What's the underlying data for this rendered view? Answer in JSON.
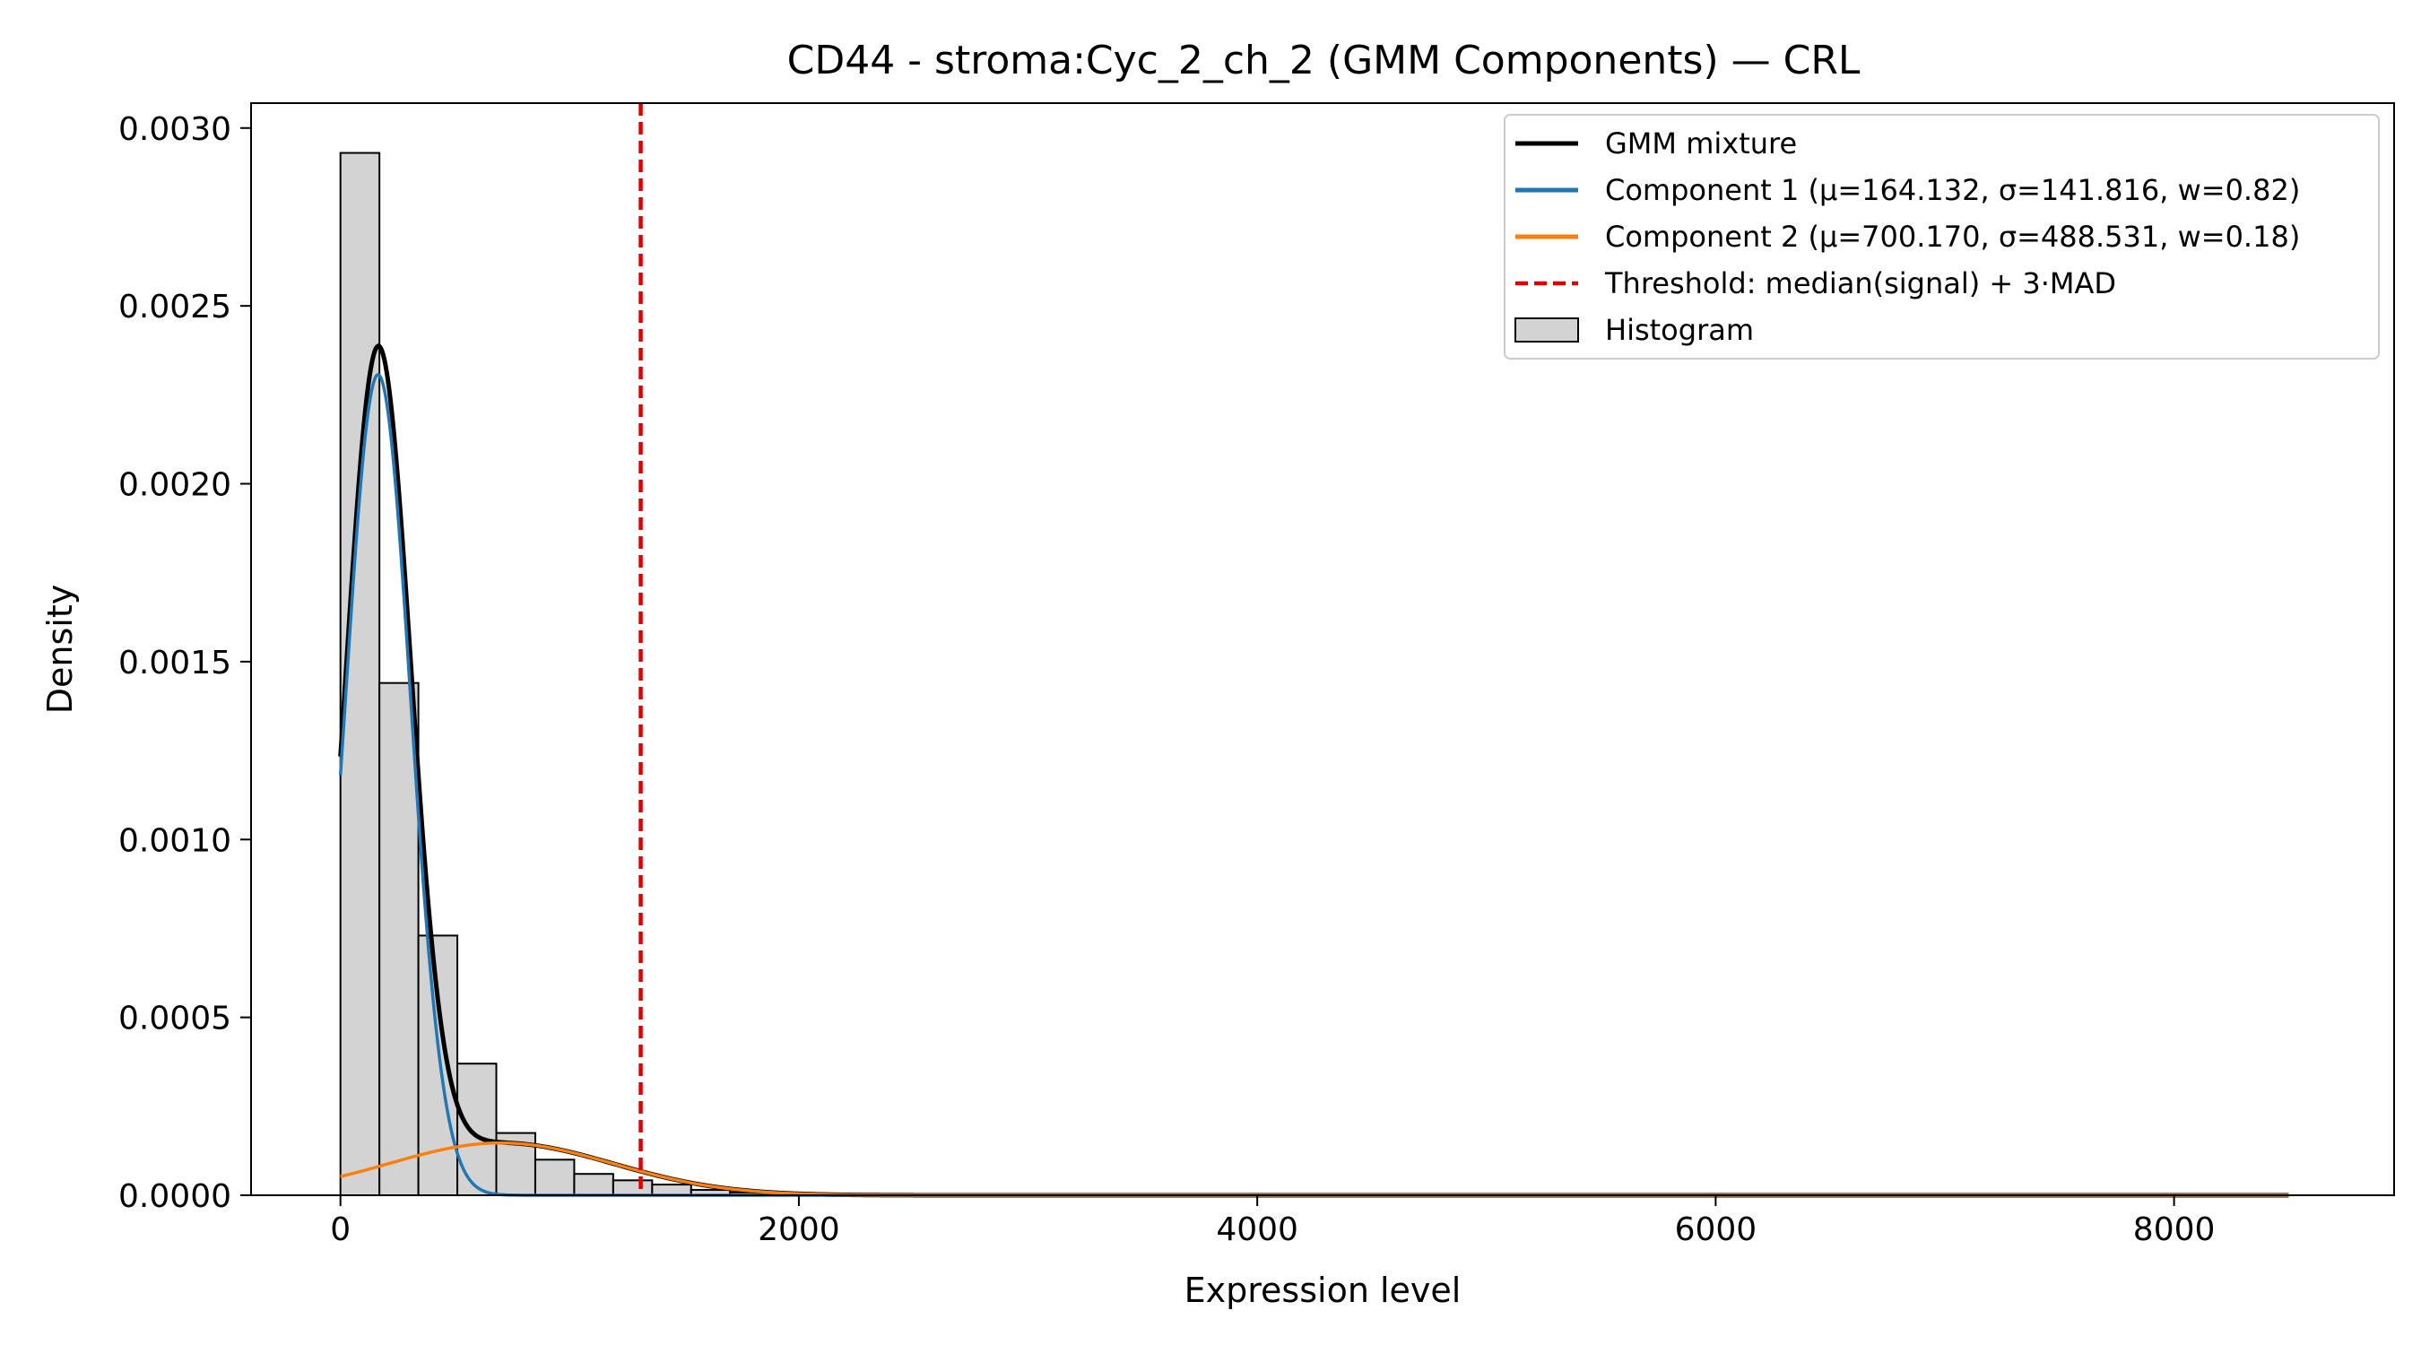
{
  "chart_data": {
    "type": "histogram",
    "title": "CD44 - stroma:Cyc_2_ch_2 (GMM Components) — CRL",
    "xlabel": "Expression level",
    "ylabel": "Density",
    "xlim": [
      -390,
      8960
    ],
    "ylim": [
      0,
      0.00307
    ],
    "xticks": [
      0,
      2000,
      4000,
      6000,
      8000
    ],
    "xtick_labels": [
      "0",
      "2000",
      "4000",
      "6000",
      "8000"
    ],
    "yticks": [
      0,
      0.0005,
      0.001,
      0.0015,
      0.002,
      0.0025,
      0.003
    ],
    "ytick_labels": [
      "0.0000",
      "0.0005",
      "0.0010",
      "0.0015",
      "0.0020",
      "0.0025",
      "0.0030"
    ],
    "grid": false,
    "legend_position": "top-right",
    "histogram": {
      "bin_width": 170,
      "bins": [
        {
          "x0": 0,
          "density": 0.00293
        },
        {
          "x0": 170,
          "density": 0.00144
        },
        {
          "x0": 340,
          "density": 0.00073
        },
        {
          "x0": 510,
          "density": 0.00037
        },
        {
          "x0": 680,
          "density": 0.000175
        },
        {
          "x0": 850,
          "density": 0.0001
        },
        {
          "x0": 1020,
          "density": 6e-05
        },
        {
          "x0": 1190,
          "density": 4.2e-05
        },
        {
          "x0": 1360,
          "density": 3e-05
        },
        {
          "x0": 1530,
          "density": 1.5e-05
        },
        {
          "x0": 1700,
          "density": 8e-06
        },
        {
          "x0": 1870,
          "density": 5e-06
        },
        {
          "x0": 2040,
          "density": 3e-06
        },
        {
          "x0": 2210,
          "density": 2e-06
        },
        {
          "x0": 2380,
          "density": 1e-06
        }
      ],
      "fill": "#d3d3d3",
      "edge": "#000000"
    },
    "gmm": {
      "x_range": [
        0,
        8500
      ],
      "components": [
        {
          "mu": 164.132,
          "sigma": 141.816,
          "w": 0.82,
          "color": "#1f77b4"
        },
        {
          "mu": 700.17,
          "sigma": 488.531,
          "w": 0.18,
          "color": "#ff7f0e"
        }
      ],
      "mixture_color": "#000000"
    },
    "threshold": {
      "x": 1310,
      "color": "#e00000"
    },
    "legend": [
      {
        "label": "GMM mixture",
        "kind": "line",
        "color": "#000000"
      },
      {
        "label": "Component 1 (μ=164.132, σ=141.816, w=0.82)",
        "kind": "line",
        "color": "#1f77b4"
      },
      {
        "label": "Component 2 (μ=700.170, σ=488.531, w=0.18)",
        "kind": "line",
        "color": "#ff7f0e"
      },
      {
        "label": "Threshold: median(signal) + 3·MAD",
        "kind": "dashed",
        "color": "#e00000"
      },
      {
        "label": "Histogram",
        "kind": "patch",
        "color": "#d3d3d3"
      }
    ]
  }
}
